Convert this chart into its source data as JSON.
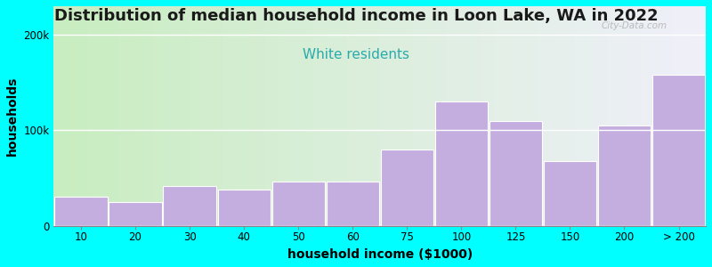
{
  "title": "Distribution of median household income in Loon Lake, WA in 2022",
  "subtitle": "White residents",
  "xlabel": "household income ($1000)",
  "ylabel": "households",
  "background_outer": "#00FFFF",
  "background_inner_left": "#c8edc0",
  "background_inner_right": "#f0f0fa",
  "bar_color": "#c4aee0",
  "bar_edge_color": "#ffffff",
  "categories": [
    "10",
    "20",
    "30",
    "40",
    "50",
    "60",
    "75",
    "100",
    "125",
    "150",
    "200",
    "> 200"
  ],
  "values": [
    30000,
    25000,
    42000,
    38000,
    46000,
    46000,
    80000,
    130000,
    110000,
    68000,
    105000,
    158000
  ],
  "yticks": [
    0,
    100000,
    200000
  ],
  "ytick_labels": [
    "0",
    "100k",
    "200k"
  ],
  "ylim": [
    0,
    230000
  ],
  "title_fontsize": 13,
  "subtitle_fontsize": 11,
  "subtitle_color": "#2aaaaa",
  "axis_label_fontsize": 10,
  "tick_fontsize": 8.5,
  "title_color": "#1a1a1a",
  "watermark": "City-Data.com"
}
